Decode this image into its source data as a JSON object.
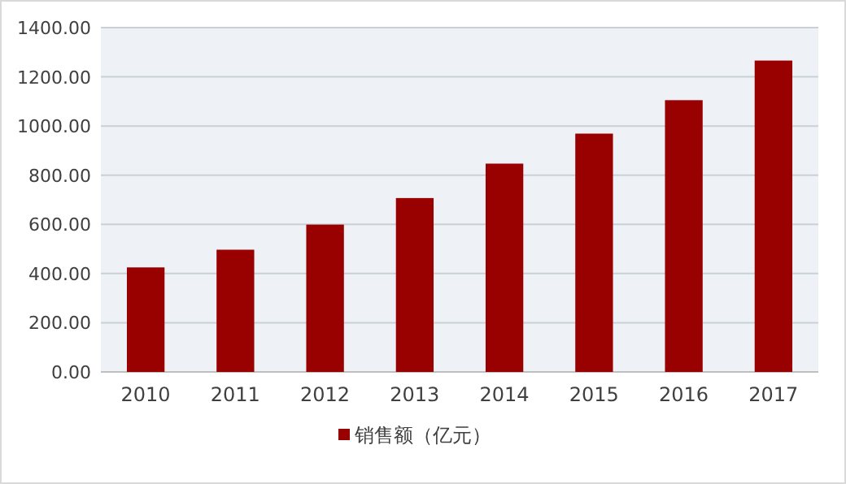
{
  "chart_data": {
    "type": "bar",
    "categories": [
      "2010",
      "2011",
      "2012",
      "2013",
      "2014",
      "2015",
      "2016",
      "2017"
    ],
    "series": [
      {
        "name": "销售额（亿元）",
        "color": "#990000",
        "values": [
          425,
          497,
          599,
          707,
          847,
          969,
          1105,
          1266
        ]
      }
    ],
    "ylim": [
      0,
      1400
    ],
    "yticks": [
      {
        "value": 0,
        "label": "0.00"
      },
      {
        "value": 200,
        "label": "200.00"
      },
      {
        "value": 400,
        "label": "400.00"
      },
      {
        "value": 600,
        "label": "600.00"
      },
      {
        "value": 800,
        "label": "800.00"
      },
      {
        "value": 1000,
        "label": "1000.00"
      },
      {
        "value": 1200,
        "label": "1200.00"
      },
      {
        "value": 1400,
        "label": "1400.00"
      }
    ],
    "grid": "y",
    "legend": "bottom"
  }
}
